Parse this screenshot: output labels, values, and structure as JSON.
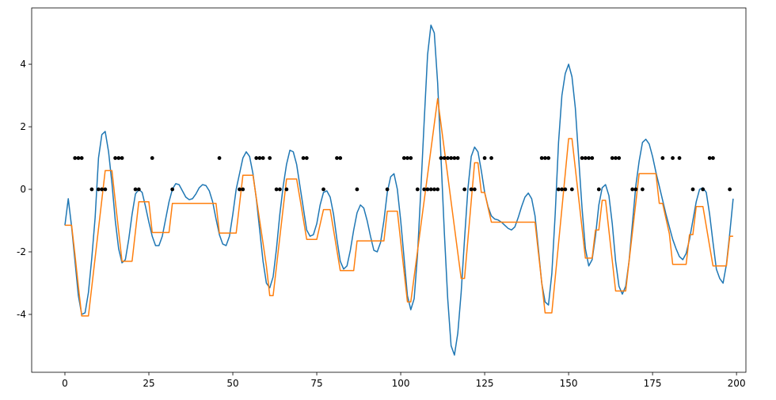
{
  "chart_data": {
    "type": "line",
    "x": [
      0,
      1,
      2,
      3,
      4,
      5,
      6,
      7,
      8,
      9,
      10,
      11,
      12,
      13,
      14,
      15,
      16,
      17,
      18,
      19,
      20,
      21,
      22,
      23,
      24,
      25,
      26,
      27,
      28,
      29,
      30,
      31,
      32,
      33,
      34,
      35,
      36,
      37,
      38,
      39,
      40,
      41,
      42,
      43,
      44,
      45,
      46,
      47,
      48,
      49,
      50,
      51,
      52,
      53,
      54,
      55,
      56,
      57,
      58,
      59,
      60,
      61,
      62,
      63,
      64,
      65,
      66,
      67,
      68,
      69,
      70,
      71,
      72,
      73,
      74,
      75,
      76,
      77,
      78,
      79,
      80,
      81,
      82,
      83,
      84,
      85,
      86,
      87,
      88,
      89,
      90,
      91,
      92,
      93,
      94,
      95,
      96,
      97,
      98,
      99,
      100,
      101,
      102,
      103,
      104,
      105,
      106,
      107,
      108,
      109,
      110,
      111,
      112,
      113,
      114,
      115,
      116,
      117,
      118,
      119,
      120,
      121,
      122,
      123,
      124,
      125,
      126,
      127,
      128,
      129,
      130,
      131,
      132,
      133,
      134,
      135,
      136,
      137,
      138,
      139,
      140,
      141,
      142,
      143,
      144,
      145,
      146,
      147,
      148,
      149,
      150,
      151,
      152,
      153,
      154,
      155,
      156,
      157,
      158,
      159,
      160,
      161,
      162,
      163,
      164,
      165,
      166,
      167,
      168,
      169,
      170,
      171,
      172,
      173,
      174,
      175,
      176,
      177,
      178,
      179,
      180,
      181,
      182,
      183,
      184,
      185,
      186,
      187,
      188,
      189,
      190,
      191,
      192,
      193,
      194,
      195,
      196,
      197,
      198,
      199
    ],
    "series": [
      {
        "color": "#1f77b4",
        "values": [
          -1.15,
          -0.3,
          -1.2,
          -2.3,
          -3.4,
          -4.0,
          -3.95,
          -3.3,
          -2.2,
          -0.9,
          1.0,
          1.75,
          1.85,
          1.2,
          0.2,
          -1.0,
          -1.9,
          -2.35,
          -2.25,
          -1.6,
          -0.8,
          -0.15,
          0.0,
          -0.1,
          -0.55,
          -1.05,
          -1.5,
          -1.8,
          -1.8,
          -1.5,
          -0.95,
          -0.4,
          0.0,
          0.18,
          0.15,
          -0.05,
          -0.25,
          -0.33,
          -0.3,
          -0.15,
          0.05,
          0.15,
          0.12,
          -0.05,
          -0.4,
          -0.95,
          -1.45,
          -1.75,
          -1.8,
          -1.5,
          -0.8,
          0.0,
          0.5,
          1.0,
          1.2,
          1.05,
          0.5,
          -0.3,
          -1.3,
          -2.3,
          -3.0,
          -3.15,
          -2.8,
          -1.9,
          -0.8,
          0.1,
          0.8,
          1.25,
          1.2,
          0.8,
          0.1,
          -0.6,
          -1.3,
          -1.5,
          -1.45,
          -1.1,
          -0.5,
          -0.1,
          -0.05,
          -0.25,
          -0.8,
          -1.6,
          -2.3,
          -2.55,
          -2.45,
          -1.95,
          -1.3,
          -0.75,
          -0.5,
          -0.6,
          -1.0,
          -1.5,
          -1.95,
          -2.0,
          -1.7,
          -1.0,
          -0.1,
          0.4,
          0.5,
          0.0,
          -1.0,
          -2.2,
          -3.4,
          -3.85,
          -3.5,
          -2.1,
          0.0,
          2.2,
          4.3,
          5.25,
          5.0,
          3.4,
          1.0,
          -1.4,
          -3.5,
          -5.0,
          -5.3,
          -4.6,
          -3.3,
          -1.6,
          0.0,
          1.05,
          1.35,
          1.2,
          0.6,
          -0.1,
          -0.55,
          -0.85,
          -0.95,
          -0.98,
          -1.05,
          -1.15,
          -1.25,
          -1.3,
          -1.2,
          -0.9,
          -0.55,
          -0.25,
          -0.12,
          -0.3,
          -0.85,
          -1.9,
          -3.0,
          -3.6,
          -3.7,
          -2.7,
          -0.8,
          1.5,
          3.0,
          3.7,
          4.0,
          3.6,
          2.6,
          1.0,
          -0.6,
          -1.9,
          -2.45,
          -2.25,
          -1.5,
          -0.5,
          0.05,
          0.15,
          -0.2,
          -1.1,
          -2.3,
          -3.1,
          -3.35,
          -3.1,
          -2.3,
          -1.1,
          0.1,
          0.9,
          1.5,
          1.6,
          1.45,
          1.05,
          0.55,
          0.1,
          -0.35,
          -0.8,
          -1.2,
          -1.6,
          -1.9,
          -2.15,
          -2.25,
          -2.05,
          -1.6,
          -1.0,
          -0.4,
          0.0,
          0.05,
          -0.1,
          -0.8,
          -1.7,
          -2.55,
          -2.85,
          -3.0,
          -2.4,
          -1.4,
          -0.3
        ]
      },
      {
        "color": "#ff7f0e",
        "values": [
          -1.15,
          -1.15,
          -1.15,
          -2.1,
          -3.1,
          -4.05,
          -4.05,
          -4.05,
          -3.12,
          -2.19,
          -1.26,
          -0.33,
          0.6,
          0.6,
          0.6,
          -0.37,
          -1.33,
          -2.3,
          -2.3,
          -2.3,
          -2.3,
          -1.35,
          -0.4,
          -0.4,
          -0.4,
          -0.4,
          -1.38,
          -1.38,
          -1.38,
          -1.38,
          -1.38,
          -1.38,
          -0.45,
          -0.45,
          -0.45,
          -0.45,
          -0.45,
          -0.45,
          -0.45,
          -0.45,
          -0.45,
          -0.45,
          -0.45,
          -0.45,
          -0.45,
          -0.45,
          -1.4,
          -1.4,
          -1.4,
          -1.4,
          -1.4,
          -1.4,
          -0.48,
          0.45,
          0.45,
          0.45,
          0.45,
          -0.28,
          -1.0,
          -1.72,
          -2.45,
          -3.4,
          -3.4,
          -2.47,
          -1.53,
          -0.6,
          0.33,
          0.33,
          0.33,
          0.33,
          -0.3,
          -0.95,
          -1.6,
          -1.6,
          -1.6,
          -1.6,
          -1.12,
          -0.65,
          -0.65,
          -0.65,
          -1.3,
          -1.95,
          -2.6,
          -2.6,
          -2.6,
          -2.6,
          -2.6,
          -1.65,
          -1.65,
          -1.65,
          -1.65,
          -1.65,
          -1.65,
          -1.65,
          -1.65,
          -1.65,
          -0.7,
          -0.7,
          -0.7,
          -0.7,
          -1.67,
          -2.63,
          -3.6,
          -3.6,
          -2.79,
          -1.98,
          -1.16,
          -0.35,
          0.46,
          1.27,
          2.09,
          2.9,
          2.08,
          1.26,
          0.44,
          -0.39,
          -1.21,
          -2.03,
          -2.85,
          -2.85,
          -1.62,
          -0.38,
          0.85,
          0.85,
          -0.1,
          -0.1,
          -0.58,
          -1.05,
          -1.05,
          -1.05,
          -1.05,
          -1.05,
          -1.05,
          -1.05,
          -1.05,
          -1.05,
          -1.05,
          -1.05,
          -1.05,
          -1.05,
          -1.05,
          -2.02,
          -2.98,
          -3.95,
          -3.95,
          -3.95,
          -2.84,
          -1.73,
          -0.62,
          0.5,
          1.62,
          1.62,
          0.67,
          -0.29,
          -1.24,
          -2.2,
          -2.2,
          -2.2,
          -1.3,
          -1.3,
          -0.35,
          -0.35,
          -1.32,
          -2.28,
          -3.25,
          -3.25,
          -3.25,
          -3.25,
          -2.31,
          -1.38,
          -0.44,
          0.5,
          0.5,
          0.5,
          0.5,
          0.5,
          0.5,
          -0.45,
          -0.45,
          -0.94,
          -1.42,
          -2.4,
          -2.4,
          -2.4,
          -2.4,
          -2.4,
          -1.45,
          -1.45,
          -0.55,
          -0.55,
          -0.55,
          -1.18,
          -1.82,
          -2.45,
          -2.45,
          -2.45,
          -2.45,
          -2.45,
          -1.5,
          -1.5
        ]
      },
      {
        "type": "scatter",
        "color": "#000000",
        "x": [
          3,
          4,
          5,
          15,
          16,
          17,
          26,
          46,
          57,
          58,
          59,
          61,
          71,
          72,
          81,
          82,
          101,
          102,
          103,
          112,
          113,
          114,
          115,
          116,
          117,
          125,
          127,
          142,
          143,
          144,
          154,
          155,
          156,
          157,
          163,
          164,
          165,
          178,
          181,
          183,
          192,
          193,
          8,
          10,
          11,
          12,
          21,
          22,
          32,
          52,
          53,
          63,
          64,
          66,
          77,
          87,
          96,
          105,
          107,
          108,
          109,
          110,
          111,
          119,
          121,
          122,
          147,
          148,
          149,
          151,
          159,
          169,
          170,
          172,
          187,
          190,
          198
        ],
        "values": [
          1,
          1,
          1,
          1,
          1,
          1,
          1,
          1,
          1,
          1,
          1,
          1,
          1,
          1,
          1,
          1,
          1,
          1,
          1,
          1,
          1,
          1,
          1,
          1,
          1,
          1,
          1,
          1,
          1,
          1,
          1,
          1,
          1,
          1,
          1,
          1,
          1,
          1,
          1,
          1,
          1,
          1,
          0,
          0,
          0,
          0,
          0,
          0,
          0,
          0,
          0,
          0,
          0,
          0,
          0,
          0,
          0,
          0,
          0,
          0,
          0,
          0,
          0,
          0,
          0,
          0,
          0,
          0,
          0,
          0,
          0,
          0,
          0,
          0,
          0,
          0,
          0
        ]
      }
    ],
    "xlim": [
      -9.9,
      202.8
    ],
    "ylim": [
      -5.85,
      5.8
    ],
    "xticks": [
      0,
      25,
      50,
      75,
      100,
      125,
      150,
      175,
      200
    ],
    "yticks": [
      -4,
      -2,
      0,
      2,
      4
    ],
    "grid": false
  }
}
